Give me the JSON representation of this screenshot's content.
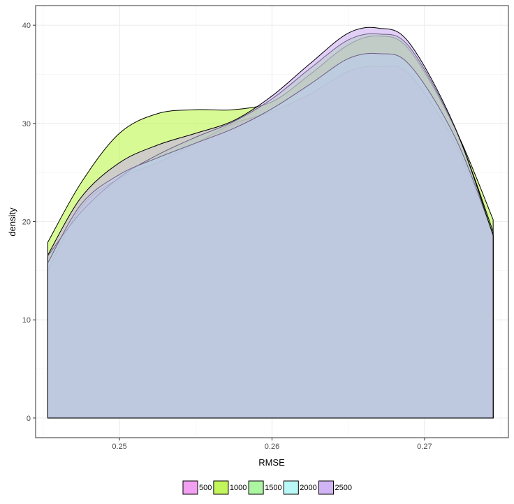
{
  "chart_data": {
    "type": "area",
    "subtype": "density",
    "title": "",
    "xlabel": "RMSE",
    "ylabel": "density",
    "xlim": [
      0.2445,
      0.2755
    ],
    "ylim": [
      -2,
      42
    ],
    "x_ticks": [
      0.25,
      0.26,
      0.27
    ],
    "x_tick_labels": [
      "0.25",
      "0.26",
      "0.27"
    ],
    "y_ticks": [
      0,
      10,
      20,
      30,
      40
    ],
    "y_tick_labels": [
      "0",
      "10",
      "20",
      "30",
      "40"
    ],
    "grid": true,
    "legend": {
      "position": "bottom"
    },
    "x": [
      0.2453,
      0.2475,
      0.25,
      0.2525,
      0.255,
      0.2575,
      0.26,
      0.2625,
      0.265,
      0.267,
      0.269,
      0.272,
      0.2745
    ],
    "series": [
      {
        "name": "500",
        "color": "#f08fee",
        "values": [
          15.0,
          21.5,
          24.4,
          26.0,
          28.0,
          30.0,
          31.2,
          33.0,
          35.3,
          35.8,
          35.0,
          28.0,
          18.6
        ]
      },
      {
        "name": "1000",
        "color": "#b8f53d",
        "values": [
          17.9,
          24.0,
          29.0,
          31.0,
          31.4,
          31.4,
          32.2,
          35.0,
          38.0,
          38.9,
          37.5,
          29.5,
          20.2
        ]
      },
      {
        "name": "1500",
        "color": "#9ff590",
        "values": [
          16.5,
          21.0,
          24.5,
          26.8,
          28.6,
          30.2,
          32.5,
          35.6,
          38.5,
          39.1,
          37.8,
          29.5,
          19.0
        ]
      },
      {
        "name": "2000",
        "color": "#adf7f4",
        "values": [
          15.8,
          21.8,
          24.8,
          26.5,
          28.0,
          29.5,
          31.5,
          34.0,
          36.6,
          37.1,
          36.0,
          28.6,
          18.7
        ]
      },
      {
        "name": "2500",
        "color": "#c9a7f2",
        "values": [
          16.6,
          22.5,
          26.0,
          27.8,
          29.0,
          30.3,
          32.8,
          36.1,
          39.2,
          39.7,
          38.2,
          29.6,
          18.6
        ]
      }
    ]
  }
}
